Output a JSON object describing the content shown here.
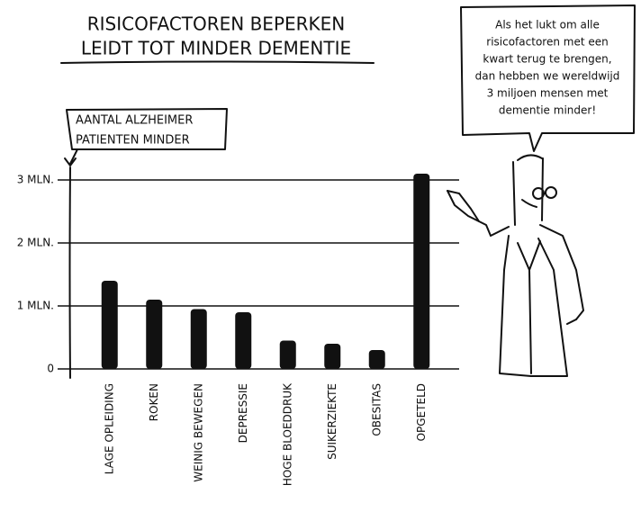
{
  "chart_data": {
    "type": "bar",
    "title": [
      "RISICOFACTOREN BEPERKEN",
      "LEIDT TOT MINDER DEMENTIE"
    ],
    "ylabel": [
      "AANTAL ALZHEIMER",
      "PATIENTEN  MINDER"
    ],
    "speech": [
      "Als het lukt om alle",
      "risicofactoren met een",
      "kwart terug te brengen,",
      "dan hebben we wereldwijd",
      "3 miljoen mensen met",
      "dementie minder!"
    ],
    "categories": [
      "LAGE OPLEIDING",
      "ROKEN",
      "WEINIG BEWEGEN",
      "DEPRESSIE",
      "HOGE BLOEDDRUK",
      "SUIKERZIEKTE",
      "OBESITAS",
      "OPGETELD"
    ],
    "values": [
      1.4,
      1.1,
      0.95,
      0.9,
      0.45,
      0.4,
      0.3,
      3.1
    ],
    "color": "#111111",
    "ylim": [
      0,
      3.3
    ],
    "yticks": [
      {
        "value": 0,
        "label": "0"
      },
      {
        "value": 1,
        "label": "1 MLN."
      },
      {
        "value": 2,
        "label": "2 MLN."
      },
      {
        "value": 3,
        "label": "3 MLN."
      }
    ],
    "grid": true
  }
}
